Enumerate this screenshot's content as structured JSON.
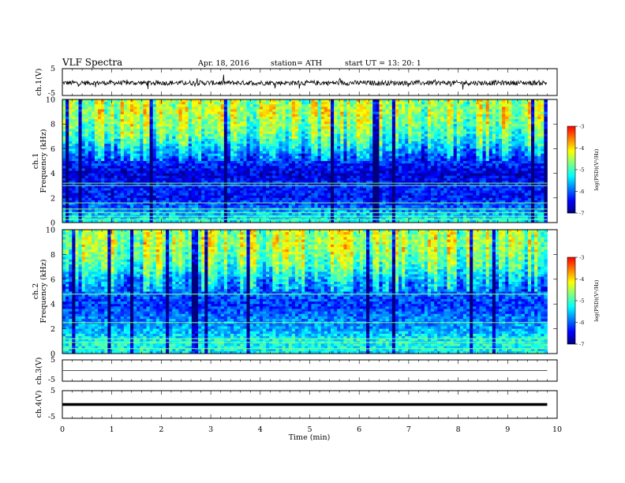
{
  "header": {
    "title": "VLF  Spectra",
    "date": "Apr. 18,  2016",
    "station": "station= ATH",
    "start": "start  UT  =    13: 20: 1"
  },
  "chart_data": [
    {
      "type": "line",
      "name": "ch1-voltage",
      "ylabel": "ch.1(V)",
      "ylim": [
        -5,
        5
      ],
      "y_ticks": [
        5,
        -5
      ],
      "x": [
        0,
        9.8
      ],
      "typical_level": -0.3,
      "fluctuation": 0.9
    },
    {
      "type": "heatmap",
      "name": "ch1-spectrogram",
      "ylabel": [
        "ch.1",
        "Frequency  (kHz)"
      ],
      "ylim": [
        0,
        10
      ],
      "y_ticks": [
        0,
        2,
        4,
        6,
        8,
        10
      ],
      "xlim": [
        0,
        9.8
      ],
      "colorbar": {
        "label": "log(PSD)(V²/Hz)",
        "range": [
          -7,
          -3
        ],
        "ticks": [
          "-3",
          "-4",
          "-5",
          "-6",
          "-7"
        ]
      },
      "colormap": [
        "#00007f",
        "#0000ff",
        "#007fff",
        "#00ffff",
        "#7fff7f",
        "#ffff00",
        "#ff7f00",
        "#ff0000",
        "#ffffff"
      ],
      "frequency_profile_logpsd": [
        {
          "f": 0,
          "v": -5.2
        },
        {
          "f": 1,
          "v": -5.8
        },
        {
          "f": 2,
          "v": -6.4
        },
        {
          "f": 3,
          "v": -6.3
        },
        {
          "f": 4,
          "v": -6.6
        },
        {
          "f": 5,
          "v": -6.2
        },
        {
          "f": 6,
          "v": -5.6
        },
        {
          "f": 7,
          "v": -5.0
        },
        {
          "f": 8,
          "v": -4.7
        },
        {
          "f": 9,
          "v": -4.5
        },
        {
          "f": 10,
          "v": -4.6
        }
      ],
      "tonal_lines_khz": [
        0.25,
        0.5,
        0.8,
        1.1,
        1.6,
        3.0,
        3.2
      ]
    },
    {
      "type": "heatmap",
      "name": "ch2-spectrogram",
      "ylabel": [
        "ch.2",
        "Frequency  (kHz)"
      ],
      "ylim": [
        0,
        10
      ],
      "y_ticks": [
        0,
        2,
        4,
        6,
        8,
        10
      ],
      "xlim": [
        0,
        9.8
      ],
      "colorbar": {
        "label": "log(PSD)(V²/Hz)",
        "range": [
          -7,
          -3
        ],
        "ticks": [
          "-3",
          "-4",
          "-5",
          "-6",
          "-7"
        ]
      },
      "colormap": [
        "#00007f",
        "#0000ff",
        "#007fff",
        "#00ffff",
        "#7fff7f",
        "#ffff00",
        "#ff7f00",
        "#ff0000",
        "#ffffff"
      ],
      "frequency_profile_logpsd": [
        {
          "f": 0,
          "v": -5.3
        },
        {
          "f": 1,
          "v": -5.2
        },
        {
          "f": 2,
          "v": -5.7
        },
        {
          "f": 3,
          "v": -5.9
        },
        {
          "f": 4,
          "v": -6.2
        },
        {
          "f": 5,
          "v": -5.9
        },
        {
          "f": 6,
          "v": -5.6
        },
        {
          "f": 7,
          "v": -5.0
        },
        {
          "f": 8,
          "v": -4.7
        },
        {
          "f": 9,
          "v": -4.5
        },
        {
          "f": 10,
          "v": -4.6
        }
      ],
      "tonal_lines_khz": [
        0.4,
        0.9,
        1.2,
        2.5,
        4.8
      ]
    },
    {
      "type": "line",
      "name": "ch3-voltage",
      "ylabel": "ch.3(V)",
      "ylim": [
        -5,
        5
      ],
      "y_ticks": [
        5,
        -5
      ],
      "x": [
        0,
        9.8
      ],
      "typical_level": 0.0
    },
    {
      "type": "line",
      "name": "ch4-voltage",
      "ylabel": "ch.4(V)",
      "ylim": [
        -5,
        5
      ],
      "y_ticks": [
        5,
        -5
      ],
      "x": [
        0,
        9.8
      ],
      "typical_level": 0.0
    }
  ],
  "x_axis": {
    "label": "Time  (min)",
    "ticks": [
      "0",
      "1",
      "2",
      "3",
      "4",
      "5",
      "6",
      "7",
      "8",
      "9",
      "10"
    ],
    "xlim": [
      0,
      10
    ]
  }
}
